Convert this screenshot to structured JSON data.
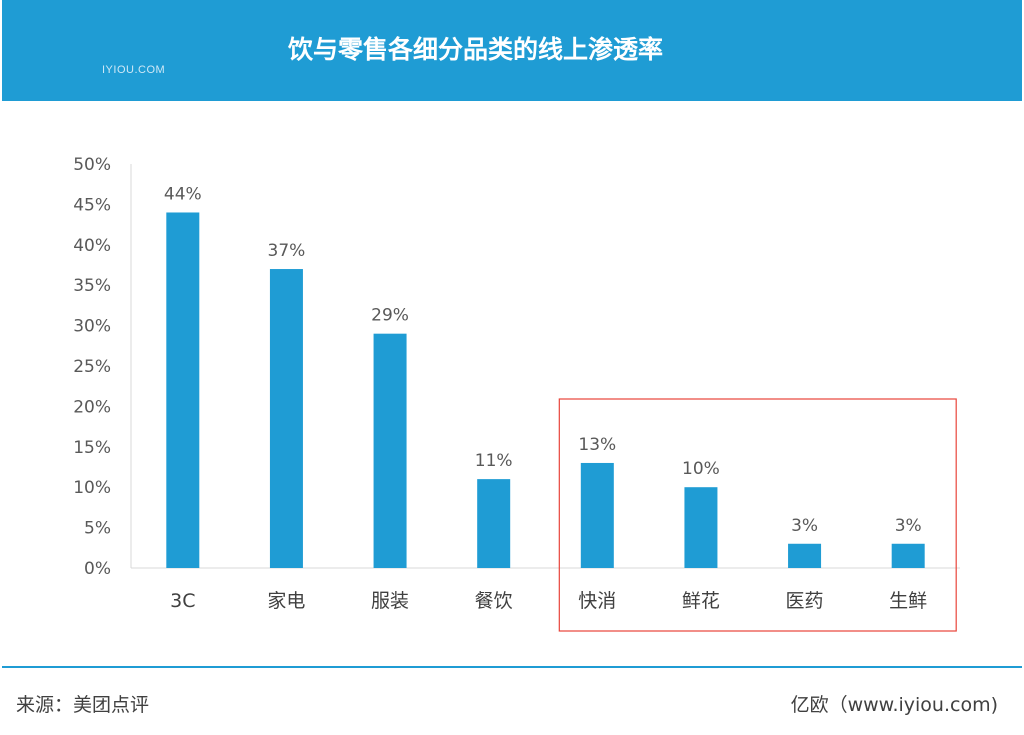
{
  "header": {
    "title": "饮与零售各细分品类的线上渗透率",
    "logo_text": "IYIOU.COM"
  },
  "chart_data": {
    "type": "bar",
    "categories": [
      "3C",
      "家电",
      "服装",
      "餐饮",
      "快消",
      "鲜花",
      "医药",
      "生鲜"
    ],
    "values": [
      44,
      37,
      29,
      11,
      13,
      10,
      3,
      3
    ],
    "data_labels": [
      "44%",
      "37%",
      "29%",
      "11%",
      "13%",
      "10%",
      "3%",
      "3%"
    ],
    "y_ticks": [
      "0%",
      "5%",
      "10%",
      "15%",
      "20%",
      "25%",
      "30%",
      "35%",
      "40%",
      "45%",
      "50%"
    ],
    "ylim": [
      0,
      50
    ],
    "bar_color": "#1f9cd4",
    "highlight_categories": [
      "快消",
      "鲜花",
      "医药",
      "生鲜"
    ],
    "highlight_color": "#e8443a",
    "grid": false
  },
  "footer": {
    "source": "来源：美团点评",
    "credit": "亿欧（www.iyiou.com)"
  },
  "colors": {
    "accent": "#1f9cd4",
    "text": "#595959"
  }
}
